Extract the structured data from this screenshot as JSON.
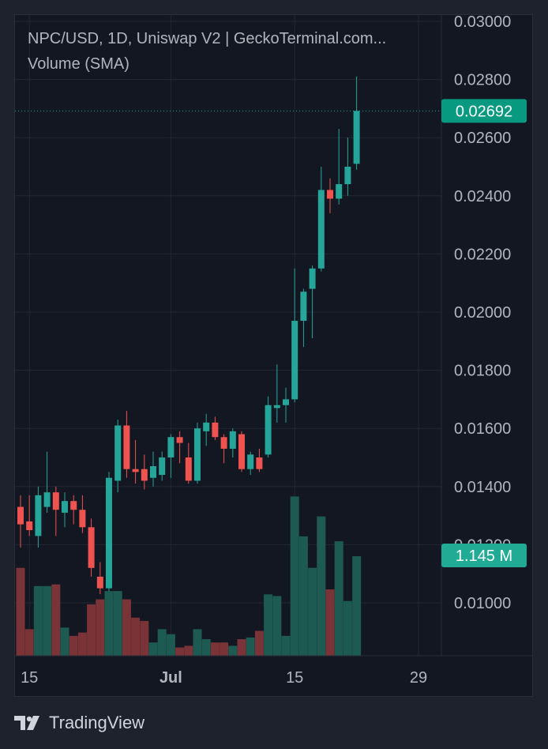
{
  "header": {
    "title": "NPC/USD, 1D, Uniswap V2 | GeckoTerminal.com...",
    "volume_indicator": "Volume (SMA)"
  },
  "footer": {
    "brand": "TradingView",
    "logo_icon": "tradingview-logo-icon"
  },
  "colors": {
    "background": "#131722",
    "grid": "#232734",
    "text": "#b2b5be",
    "up": "#26a69a",
    "down": "#ef5350",
    "up_volume": "#1d5b52",
    "down_volume": "#7a3336",
    "last_price_badge": "#089981"
  },
  "chart_data": {
    "type": "candlestick",
    "symbol": "NPC/USD",
    "interval": "1D",
    "x_axis_ticks": [
      "15",
      "Jul",
      "15",
      "29"
    ],
    "y_axis_ticks": [
      "0.03000",
      "0.02800",
      "0.02600",
      "0.02400",
      "0.02200",
      "0.02000",
      "0.01800",
      "0.01600",
      "0.01400",
      "0.01200",
      "0.01000"
    ],
    "ylim": [
      0.0084,
      0.0302
    ],
    "last_price": "0.02692",
    "last_volume": "1.145 M",
    "candles": [
      {
        "date": "Jun 14",
        "o": 0.0133,
        "h": 0.0137,
        "l": 0.0119,
        "c": 0.0127,
        "v": 0.53
      },
      {
        "date": "Jun 15",
        "o": 0.0128,
        "h": 0.0137,
        "l": 0.0123,
        "c": 0.0125,
        "v": 0.16
      },
      {
        "date": "Jun 16",
        "o": 0.0123,
        "h": 0.014,
        "l": 0.0119,
        "c": 0.0137,
        "v": 0.42
      },
      {
        "date": "Jun 17",
        "o": 0.0133,
        "h": 0.0152,
        "l": 0.0131,
        "c": 0.0138,
        "v": 0.42
      },
      {
        "date": "Jun 18",
        "o": 0.0138,
        "h": 0.014,
        "l": 0.0123,
        "c": 0.0132,
        "v": 0.43
      },
      {
        "date": "Jun 19",
        "o": 0.0131,
        "h": 0.0138,
        "l": 0.0126,
        "c": 0.0135,
        "v": 0.17
      },
      {
        "date": "Jun 20",
        "o": 0.0135,
        "h": 0.0137,
        "l": 0.0127,
        "c": 0.0132,
        "v": 0.12
      },
      {
        "date": "Jun 21",
        "o": 0.0132,
        "h": 0.0137,
        "l": 0.0124,
        "c": 0.0126,
        "v": 0.14
      },
      {
        "date": "Jun 22",
        "o": 0.0126,
        "h": 0.0129,
        "l": 0.0109,
        "c": 0.0112,
        "v": 0.31
      },
      {
        "date": "Jun 23",
        "o": 0.0109,
        "h": 0.0114,
        "l": 0.0103,
        "c": 0.0105,
        "v": 0.34
      },
      {
        "date": "Jun 24",
        "o": 0.0105,
        "h": 0.0145,
        "l": 0.0104,
        "c": 0.0143,
        "v": 0.39
      },
      {
        "date": "Jun 25",
        "o": 0.0142,
        "h": 0.0163,
        "l": 0.0138,
        "c": 0.0161,
        "v": 0.39
      },
      {
        "date": "Jun 26",
        "o": 0.0161,
        "h": 0.0166,
        "l": 0.0143,
        "c": 0.0146,
        "v": 0.34
      },
      {
        "date": "Jun 27",
        "o": 0.0146,
        "h": 0.0156,
        "l": 0.0141,
        "c": 0.0145,
        "v": 0.23
      },
      {
        "date": "Jun 28",
        "o": 0.0146,
        "h": 0.0151,
        "l": 0.0139,
        "c": 0.0142,
        "v": 0.21
      },
      {
        "date": "Jun 29",
        "o": 0.0143,
        "h": 0.0152,
        "l": 0.014,
        "c": 0.0147,
        "v": 0.08
      },
      {
        "date": "Jun 30",
        "o": 0.0144,
        "h": 0.0152,
        "l": 0.0142,
        "c": 0.015,
        "v": 0.16
      },
      {
        "date": "Jul 1",
        "o": 0.015,
        "h": 0.0158,
        "l": 0.0143,
        "c": 0.0157,
        "v": 0.13
      },
      {
        "date": "Jul 2",
        "o": 0.0157,
        "h": 0.0159,
        "l": 0.0148,
        "c": 0.0155,
        "v": 0.05
      },
      {
        "date": "Jul 3",
        "o": 0.015,
        "h": 0.0155,
        "l": 0.0141,
        "c": 0.0142,
        "v": 0.06
      },
      {
        "date": "Jul 4",
        "o": 0.0142,
        "h": 0.0162,
        "l": 0.0141,
        "c": 0.016,
        "v": 0.16
      },
      {
        "date": "Jul 5",
        "o": 0.0159,
        "h": 0.0165,
        "l": 0.0154,
        "c": 0.0162,
        "v": 0.1
      },
      {
        "date": "Jul 6",
        "o": 0.0162,
        "h": 0.0164,
        "l": 0.0156,
        "c": 0.0157,
        "v": 0.08
      },
      {
        "date": "Jul 7",
        "o": 0.0157,
        "h": 0.0158,
        "l": 0.0148,
        "c": 0.0153,
        "v": 0.08
      },
      {
        "date": "Jul 8",
        "o": 0.0153,
        "h": 0.016,
        "l": 0.015,
        "c": 0.0159,
        "v": 0.06
      },
      {
        "date": "Jul 9",
        "o": 0.0158,
        "h": 0.0159,
        "l": 0.0145,
        "c": 0.0146,
        "v": 0.1
      },
      {
        "date": "Jul 10",
        "o": 0.0146,
        "h": 0.0152,
        "l": 0.0144,
        "c": 0.0151,
        "v": 0.11
      },
      {
        "date": "Jul 11",
        "o": 0.015,
        "h": 0.0153,
        "l": 0.0145,
        "c": 0.0146,
        "v": 0.15
      },
      {
        "date": "Jul 12",
        "o": 0.0151,
        "h": 0.0171,
        "l": 0.015,
        "c": 0.0168,
        "v": 0.37
      },
      {
        "date": "Jul 13",
        "o": 0.0167,
        "h": 0.0182,
        "l": 0.0162,
        "c": 0.0168,
        "v": 0.36
      },
      {
        "date": "Jul 14",
        "o": 0.0168,
        "h": 0.0174,
        "l": 0.0162,
        "c": 0.017,
        "v": 0.12
      },
      {
        "date": "Jul 15",
        "o": 0.017,
        "h": 0.0215,
        "l": 0.0169,
        "c": 0.0197,
        "v": 0.96
      },
      {
        "date": "Jul 16",
        "o": 0.0197,
        "h": 0.0208,
        "l": 0.0188,
        "c": 0.0207,
        "v": 0.72
      },
      {
        "date": "Jul 17",
        "o": 0.0208,
        "h": 0.0216,
        "l": 0.0191,
        "c": 0.0215,
        "v": 0.53
      },
      {
        "date": "Jul 18",
        "o": 0.0215,
        "h": 0.025,
        "l": 0.0214,
        "c": 0.0242,
        "v": 0.84
      },
      {
        "date": "Jul 19",
        "o": 0.0242,
        "h": 0.0246,
        "l": 0.0234,
        "c": 0.0239,
        "v": 0.4
      },
      {
        "date": "Jul 20",
        "o": 0.0239,
        "h": 0.0263,
        "l": 0.0237,
        "c": 0.0244,
        "v": 0.69
      },
      {
        "date": "Jul 21",
        "o": 0.0244,
        "h": 0.026,
        "l": 0.024,
        "c": 0.025,
        "v": 0.33
      },
      {
        "date": "Jul 22",
        "o": 0.0251,
        "h": 0.0281,
        "l": 0.0249,
        "c": 0.02692,
        "v": 0.6
      }
    ]
  }
}
